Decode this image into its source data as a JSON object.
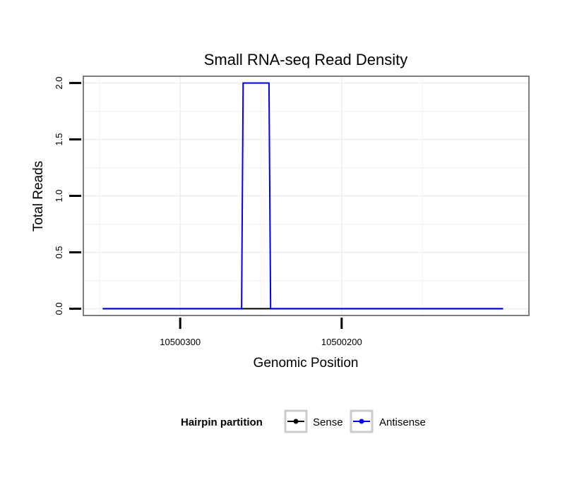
{
  "chart_data": {
    "type": "line",
    "title": "Small RNA-seq Read Density",
    "xlabel": "Genomic Position",
    "ylabel": "Total Reads",
    "x_reversed": true,
    "xlim": [
      10500360,
      10500084
    ],
    "ylim": [
      -0.06,
      2.06
    ],
    "x_ticks": [
      10500300,
      10500200
    ],
    "x_tick_labels": [
      "10500300",
      "10500200"
    ],
    "y_ticks": [
      0,
      0.5,
      1,
      1.5,
      2
    ],
    "y_tick_labels": [
      "0.0",
      "0.5",
      "1.0",
      "1.5",
      "2.0"
    ],
    "grid": true,
    "legend": {
      "title": "Hairpin partition",
      "position": "bottom",
      "entries": [
        "Sense",
        "Antisense"
      ]
    },
    "series": [
      {
        "name": "Sense",
        "color": "#000000",
        "x": [
          10500348,
          10500100
        ],
        "y": [
          0,
          0
        ]
      },
      {
        "name": "Antisense",
        "color": "#0000ff",
        "x": [
          10500348,
          10500262,
          10500261,
          10500245,
          10500244,
          10500100
        ],
        "y": [
          0,
          0,
          2,
          2,
          0,
          0
        ]
      }
    ]
  }
}
